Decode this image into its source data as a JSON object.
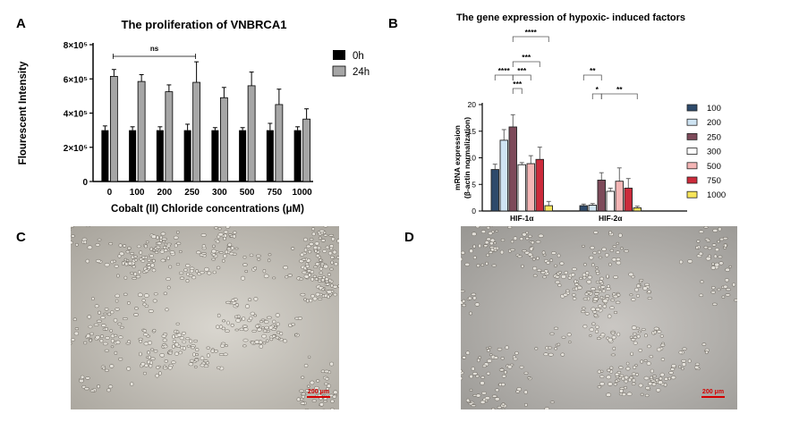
{
  "panels": {
    "a": {
      "letter": "A"
    },
    "b": {
      "letter": "B"
    },
    "c": {
      "letter": "C",
      "scale_label": "200 μm"
    },
    "d": {
      "letter": "D",
      "scale_label": "200 μm"
    }
  },
  "chart_data": [
    {
      "type": "bar",
      "title": "The proliferation of VNBRCA1",
      "xlabel": "Cobalt (II) Chloride concentrations (μM)",
      "ylabel": "Flourescent Intensity",
      "categories": [
        "0",
        "100",
        "200",
        "250",
        "300",
        "500",
        "750",
        "1000"
      ],
      "series": [
        {
          "name": "0h",
          "color": "#000000",
          "values": [
            300000,
            300000,
            300000,
            300000,
            300000,
            300000,
            300000,
            300000
          ],
          "errors": [
            25000,
            20000,
            20000,
            35000,
            15000,
            15000,
            40000,
            20000
          ]
        },
        {
          "name": "24h",
          "color": "#a6a6a6",
          "values": [
            615000,
            585000,
            525000,
            580000,
            490000,
            560000,
            450000,
            365000
          ],
          "errors": [
            40000,
            40000,
            40000,
            120000,
            60000,
            80000,
            90000,
            60000
          ]
        }
      ],
      "ylim": [
        0,
        800000
      ],
      "yticks": [
        0,
        200000,
        400000,
        600000,
        800000
      ],
      "ytick_labels": [
        "0",
        "2×10⁵",
        "4×10⁵",
        "6×10⁵",
        "8×10⁵"
      ],
      "legend_position": "right",
      "annotations": [
        {
          "label": "ns",
          "from": "0",
          "to": "250"
        }
      ]
    },
    {
      "type": "bar",
      "title": "The gene expression of hypoxic- induced factors",
      "xlabel": "",
      "ylabel": "mRNA expression",
      "ylabel2": "(β-actin normalization)",
      "groups": [
        "HIF-1α",
        "HIF-2α"
      ],
      "series": [
        {
          "name": "100",
          "color": "#2e4a6b",
          "values": [
            7.8,
            1.0
          ],
          "errors": [
            1.0,
            0.3
          ]
        },
        {
          "name": "200",
          "color": "#cfe4f3",
          "values": [
            13.3,
            1.1
          ],
          "errors": [
            2.0,
            0.3
          ]
        },
        {
          "name": "250",
          "color": "#7d4a5a",
          "values": [
            15.8,
            5.8
          ],
          "errors": [
            2.3,
            1.4
          ]
        },
        {
          "name": "300",
          "color": "#ffffff",
          "values": [
            8.7,
            3.7
          ],
          "errors": [
            0.4,
            0.6
          ]
        },
        {
          "name": "500",
          "color": "#f4b6b6",
          "values": [
            8.9,
            5.6
          ],
          "errors": [
            1.5,
            2.5
          ]
        },
        {
          "name": "750",
          "color": "#cc2b3b",
          "values": [
            9.7,
            4.3
          ],
          "errors": [
            2.3,
            1.8
          ]
        },
        {
          "name": "1000",
          "color": "#f7e55a",
          "values": [
            1.0,
            0.6
          ],
          "errors": [
            0.8,
            0.3
          ]
        }
      ],
      "ylim": [
        0,
        20
      ],
      "yticks": [
        0,
        5,
        10,
        15,
        20
      ],
      "legend_position": "right",
      "annotations": [
        {
          "label": "****",
          "group": "HIF-1α",
          "from": "250",
          "to": "1000"
        },
        {
          "label": "****",
          "group": "HIF-1α",
          "from": "100",
          "to": "250"
        },
        {
          "label": "***",
          "group": "HIF-1α",
          "from": "250",
          "to": "750"
        },
        {
          "label": "***",
          "group": "HIF-1α",
          "from": "250",
          "to": "500"
        },
        {
          "label": "***",
          "group": "HIF-1α",
          "from": "250",
          "to": "300"
        },
        {
          "label": "**",
          "group": "HIF-2α",
          "from": "100",
          "to": "250"
        },
        {
          "label": "*",
          "group": "HIF-2α",
          "from": "200",
          "to": "250"
        },
        {
          "label": "**",
          "group": "HIF-2α",
          "from": "250",
          "to": "1000"
        }
      ]
    }
  ]
}
